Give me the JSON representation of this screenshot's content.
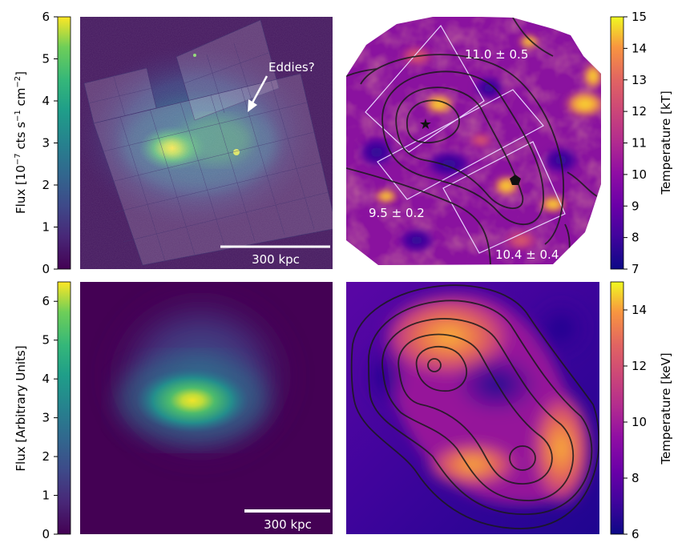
{
  "chart_data": [
    {
      "type": "heatmap",
      "panel": "top-left",
      "colormap": "viridis",
      "colorbar": {
        "label": "Flux [10$^{-7}$ cts s$^{-1}$ cm$^{-2}$]",
        "label_main": "Flux [10",
        "label_exp1": "−7",
        "label_mid": " cts s",
        "label_exp2": "−1",
        "label_mid2": " cm",
        "label_exp3": "−2",
        "label_end": "]",
        "range": [
          0,
          6
        ],
        "ticks": [
          0,
          1,
          2,
          3,
          4,
          5,
          6
        ],
        "side": "left"
      },
      "annotations": [
        {
          "text": "Eddies?"
        }
      ],
      "scalebar": {
        "label": "300 kpc"
      }
    },
    {
      "type": "heatmap",
      "panel": "top-right",
      "colormap": "plasma",
      "colorbar": {
        "label": "Temperature [kT]",
        "range": [
          7,
          15
        ],
        "ticks": [
          7,
          8,
          9,
          10,
          11,
          12,
          13,
          14,
          15
        ],
        "side": "right"
      },
      "region_labels": [
        {
          "text": "11.0 ± 0.5",
          "value": 11.0,
          "error": 0.5
        },
        {
          "text": "9.5 ± 0.2",
          "value": 9.5,
          "error": 0.2
        },
        {
          "text": "10.4 ± 0.4",
          "value": 10.4,
          "error": 0.4
        }
      ]
    },
    {
      "type": "heatmap",
      "panel": "bottom-left",
      "colormap": "viridis",
      "colorbar": {
        "label": "Flux [Arbitrary Units]",
        "range": [
          0,
          6.5
        ],
        "ticks": [
          0,
          1,
          2,
          3,
          4,
          5,
          6
        ],
        "side": "left"
      },
      "scalebar": {
        "label": "300 kpc"
      }
    },
    {
      "type": "heatmap",
      "panel": "bottom-right",
      "colormap": "plasma",
      "colorbar": {
        "label": "Temperature [keV]",
        "range": [
          6,
          15
        ],
        "ticks": [
          6,
          8,
          10,
          12,
          14
        ],
        "side": "right"
      }
    }
  ]
}
